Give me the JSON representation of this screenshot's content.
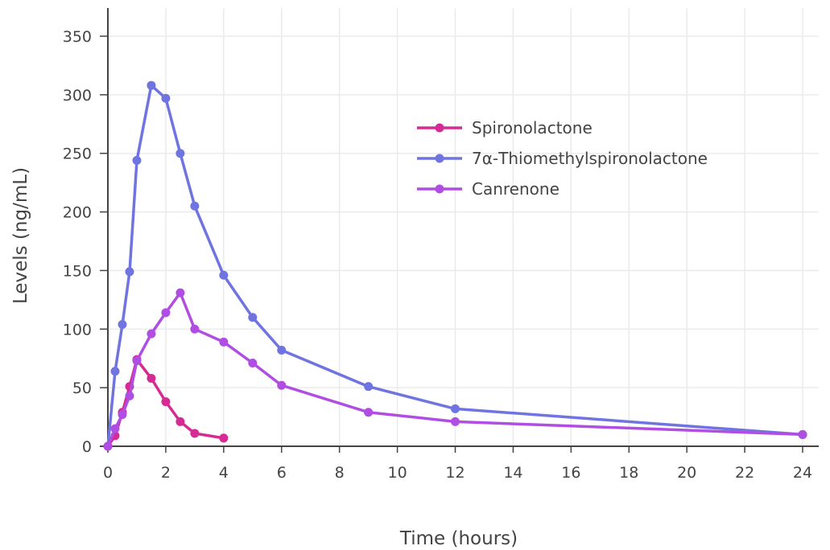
{
  "chart_data": {
    "type": "line",
    "xlabel": "Time (hours)",
    "ylabel": "Levels (ng/mL)",
    "xlim": [
      0,
      24
    ],
    "ylim": [
      0,
      350
    ],
    "xticks": [
      0,
      2,
      4,
      6,
      8,
      10,
      12,
      14,
      16,
      18,
      20,
      22,
      24
    ],
    "yticks": [
      0,
      50,
      100,
      150,
      200,
      250,
      300,
      350
    ],
    "grid": true,
    "legend_position": "top-right",
    "series": [
      {
        "name": "Spironolactone",
        "color": "#d62b95",
        "x": [
          0,
          0.25,
          0.5,
          0.75,
          1,
          1.5,
          2,
          2.5,
          3,
          4
        ],
        "values": [
          0,
          9,
          29,
          51,
          74,
          58,
          38,
          21,
          11,
          7
        ]
      },
      {
        "name": "7α-Thiomethylspironolactone",
        "color": "#6f74e0",
        "x": [
          0,
          0.25,
          0.5,
          0.75,
          1,
          1.5,
          2,
          2.5,
          3,
          4,
          5,
          6,
          9,
          12,
          24
        ],
        "values": [
          0,
          64,
          104,
          149,
          244,
          308,
          297,
          250,
          205,
          146,
          110,
          82,
          51,
          32,
          10
        ]
      },
      {
        "name": "Canrenone",
        "color": "#b04de2",
        "x": [
          0,
          0.25,
          0.5,
          0.75,
          1,
          1.5,
          2,
          2.5,
          3,
          4,
          5,
          6,
          9,
          12,
          24
        ],
        "values": [
          0,
          15,
          27,
          43,
          73,
          96,
          114,
          131,
          100,
          89,
          71,
          52,
          29,
          21,
          10
        ]
      }
    ]
  }
}
